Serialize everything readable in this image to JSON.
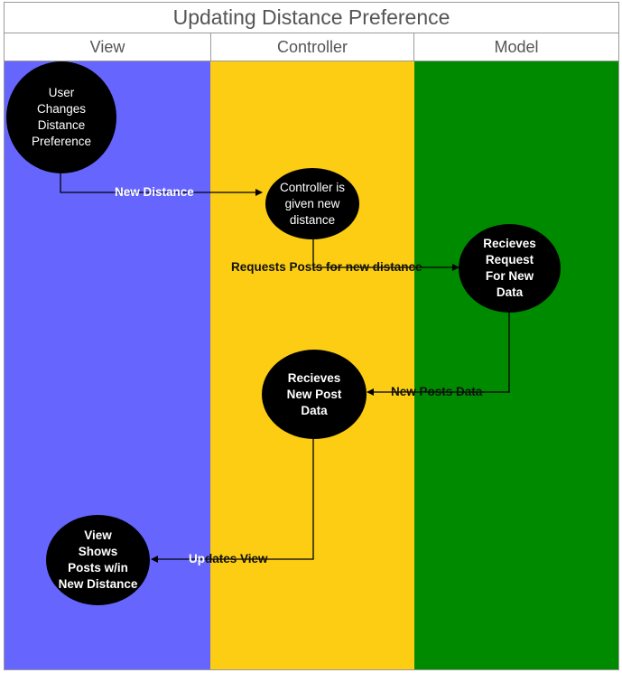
{
  "title": "Updating Distance Preference",
  "lanes": [
    {
      "label": "View",
      "color": "#6666ff"
    },
    {
      "label": "Controller",
      "color": "#fccd12"
    },
    {
      "label": "Model",
      "color": "#008a00"
    }
  ],
  "nodes": {
    "user_changes": "User\nChanges\nDistance\nPreference",
    "controller_given": "Controller is\ngiven new\ndistance",
    "model_receives": "Recieves\nRequest\nFor New\nData",
    "controller_receives": "Recieves\nNew Post\nData",
    "view_shows": "View\nShows\nPosts w/in\nNew Distance"
  },
  "edges": {
    "new_distance": "New Distance",
    "requests_posts": "Requests Posts for new distance",
    "new_posts_data": "New Posts Data",
    "updates_view": "Updates View"
  }
}
